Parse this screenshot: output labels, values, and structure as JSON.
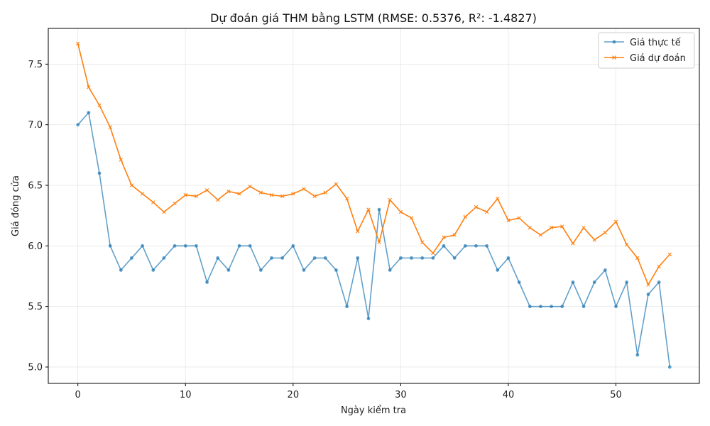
{
  "chart_data": {
    "type": "line",
    "title": "Dự đoán giá THM bằng LSTM (RMSE: 0.5376, R²: -1.4827)",
    "xlabel": "Ngày kiểm tra",
    "ylabel": "Giá đóng cửa",
    "xlim": [
      -2.75,
      57.75
    ],
    "ylim": [
      4.865,
      7.795
    ],
    "xticks": [
      0,
      10,
      20,
      30,
      40,
      50
    ],
    "yticks": [
      5.0,
      5.5,
      6.0,
      6.5,
      7.0,
      7.5
    ],
    "xtick_labels": [
      "0",
      "10",
      "20",
      "30",
      "40",
      "50"
    ],
    "ytick_labels": [
      "5.0",
      "5.5",
      "6.0",
      "6.5",
      "7.0",
      "7.5"
    ],
    "grid": true,
    "legend_position": "top-right",
    "x": [
      0,
      1,
      2,
      3,
      4,
      5,
      6,
      7,
      8,
      9,
      10,
      11,
      12,
      13,
      14,
      15,
      16,
      17,
      18,
      19,
      20,
      21,
      22,
      23,
      24,
      25,
      26,
      27,
      28,
      29,
      30,
      31,
      32,
      33,
      34,
      35,
      36,
      37,
      38,
      39,
      40,
      41,
      42,
      43,
      44,
      45,
      46,
      47,
      48,
      49,
      50,
      51,
      52,
      53,
      54,
      55
    ],
    "series": [
      {
        "name": "Giá thực tế",
        "color": "#1f77b4",
        "marker": "circle",
        "values": [
          7.0,
          7.1,
          6.6,
          6.0,
          5.8,
          5.9,
          6.0,
          5.8,
          5.9,
          6.0,
          6.0,
          6.0,
          5.7,
          5.9,
          5.8,
          6.0,
          6.0,
          5.8,
          5.9,
          5.9,
          6.0,
          5.8,
          5.9,
          5.9,
          5.8,
          5.5,
          5.9,
          5.4,
          6.3,
          5.8,
          5.9,
          5.9,
          5.9,
          5.9,
          6.0,
          5.9,
          6.0,
          6.0,
          6.0,
          5.8,
          5.9,
          5.7,
          5.5,
          5.5,
          5.5,
          5.5,
          5.7,
          5.5,
          5.7,
          5.8,
          5.5,
          5.7,
          5.1,
          5.6,
          5.7,
          5.0
        ]
      },
      {
        "name": "Giá dự đoán",
        "color": "#ff7f0e",
        "marker": "x",
        "values": [
          7.67,
          7.31,
          7.16,
          6.98,
          6.71,
          6.5,
          6.43,
          6.36,
          6.28,
          6.35,
          6.42,
          6.41,
          6.46,
          6.38,
          6.45,
          6.43,
          6.49,
          6.44,
          6.42,
          6.41,
          6.43,
          6.47,
          6.41,
          6.44,
          6.51,
          6.39,
          6.12,
          6.3,
          6.03,
          6.38,
          6.28,
          6.23,
          6.03,
          5.94,
          6.07,
          6.09,
          6.24,
          6.32,
          6.28,
          6.39,
          6.21,
          6.23,
          6.15,
          6.09,
          6.15,
          6.16,
          6.02,
          6.15,
          6.05,
          6.11,
          6.2,
          6.01,
          5.9,
          5.68,
          5.83,
          5.93
        ]
      }
    ]
  }
}
